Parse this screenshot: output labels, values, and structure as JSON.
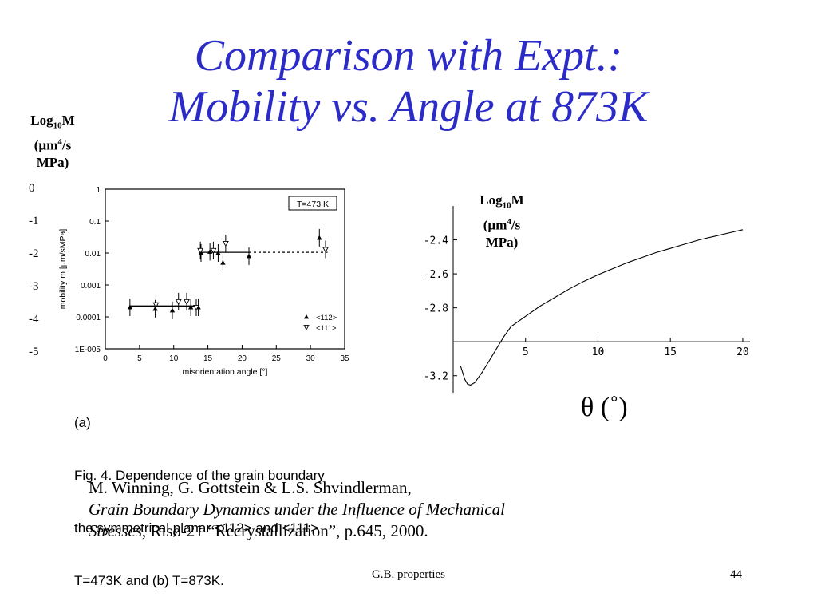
{
  "slide": {
    "title_line1": "Comparison with Expt.:",
    "title_line2": "Mobility vs. Angle at 873K",
    "footer_left": "G.B. properties",
    "page_number": "44",
    "colors": {
      "title": "#2b2bc8",
      "text": "#000000"
    }
  },
  "left_axis_label": {
    "log": "Log",
    "sub": "10",
    "m": "M",
    "unit1": "(µm",
    "sup": "4",
    "unit2": "/s",
    "unit3": "MPa)"
  },
  "left_axis_ticks": [
    "0",
    "-1",
    "-2",
    "-3",
    "-4",
    "-5"
  ],
  "right_axis_label": {
    "log": "Log",
    "sub": "10",
    "m": "M",
    "unit1": "(µm",
    "sup": "4",
    "unit2": "/s",
    "unit3": "MPa)"
  },
  "theta_label": "θ (˚)",
  "figure": {
    "panel": "(a)",
    "caption_line1": "Fig. 4. Dependence of the grain boundary",
    "caption_line2": "the symmetrical planar <112> and <111>",
    "caption_line3": "T=473K and (b) T=873K."
  },
  "reference": {
    "line1": "M. Winning, G. Gottstein & L.S. Shvindlerman,",
    "line2_italic": "Grain Boundary Dynamics under the Influence of Mechanical",
    "line3_italic": "Stresses",
    "line3_rest": ", Risø-21 “Recrystallization”, p.645, 2000."
  },
  "chart_data": [
    {
      "type": "scatter",
      "title": "",
      "xlabel": "misorientation angle [°]",
      "ylabel": "mobility m [µm/sMPa]",
      "x_ticks": [
        "0",
        "5",
        "10",
        "15",
        "20",
        "25",
        "30",
        "35"
      ],
      "y_ticks": [
        "1",
        "0.1",
        "0.01",
        "0.001",
        "0.0001",
        "1E-005"
      ],
      "xlim": [
        0,
        35
      ],
      "ylim_log10": [
        -5,
        0
      ],
      "yscale": "log",
      "annotation": "T=473 K",
      "legend": [
        "<112>",
        "<111>"
      ],
      "legend_position": "bottom-right",
      "series": [
        {
          "name": "<112>",
          "marker": "filled-triangle-up",
          "points": [
            [
              3.6,
              0.0002
            ],
            [
              7.3,
              0.00018
            ],
            [
              9.8,
              0.00016
            ],
            [
              12.5,
              0.0002
            ],
            [
              13.6,
              0.0002
            ],
            [
              14.0,
              0.01
            ],
            [
              15.3,
              0.011
            ],
            [
              16.5,
              0.01
            ],
            [
              17.2,
              0.005
            ],
            [
              21.0,
              0.008
            ],
            [
              31.3,
              0.03
            ]
          ]
        },
        {
          "name": "<111>",
          "marker": "open-triangle-down",
          "points": [
            [
              7.4,
              0.00024
            ],
            [
              10.7,
              0.0003
            ],
            [
              11.9,
              0.0003
            ],
            [
              13.3,
              0.0002
            ],
            [
              13.9,
              0.012
            ],
            [
              15.8,
              0.012
            ],
            [
              17.6,
              0.02
            ],
            [
              32.2,
              0.013
            ]
          ]
        }
      ],
      "fit_lines": [
        {
          "x": [
            3.5,
            13.7
          ],
          "y": 0.00022,
          "style": "solid"
        },
        {
          "x": [
            13.7,
            21
          ],
          "y": 0.0105,
          "style": "solid"
        },
        {
          "x": [
            21,
            32.5
          ],
          "y": 0.0105,
          "style": "dashed"
        }
      ]
    },
    {
      "type": "line",
      "title": "",
      "xlabel": "",
      "ylabel": "",
      "x_ticks": [
        "5",
        "10",
        "15",
        "20"
      ],
      "y_ticks": [
        "-2.4",
        "-2.6",
        "-2.8",
        "-3.2"
      ],
      "xlim": [
        0,
        20.5
      ],
      "ylim": [
        -3.3,
        -2.2
      ],
      "series": [
        {
          "name": "",
          "x": [
            0.5,
            0.8,
            1.0,
            1.2,
            1.5,
            2,
            2.5,
            3,
            3.5,
            4,
            5,
            6,
            7,
            8,
            9,
            10,
            11,
            12,
            13,
            14,
            15,
            16,
            17,
            18,
            19,
            20
          ],
          "y": [
            -3.14,
            -3.22,
            -3.25,
            -3.255,
            -3.24,
            -3.18,
            -3.11,
            -3.04,
            -2.97,
            -2.91,
            -2.85,
            -2.79,
            -2.74,
            -2.69,
            -2.645,
            -2.605,
            -2.57,
            -2.535,
            -2.505,
            -2.475,
            -2.45,
            -2.425,
            -2.4,
            -2.38,
            -2.36,
            -2.34
          ]
        }
      ]
    }
  ]
}
